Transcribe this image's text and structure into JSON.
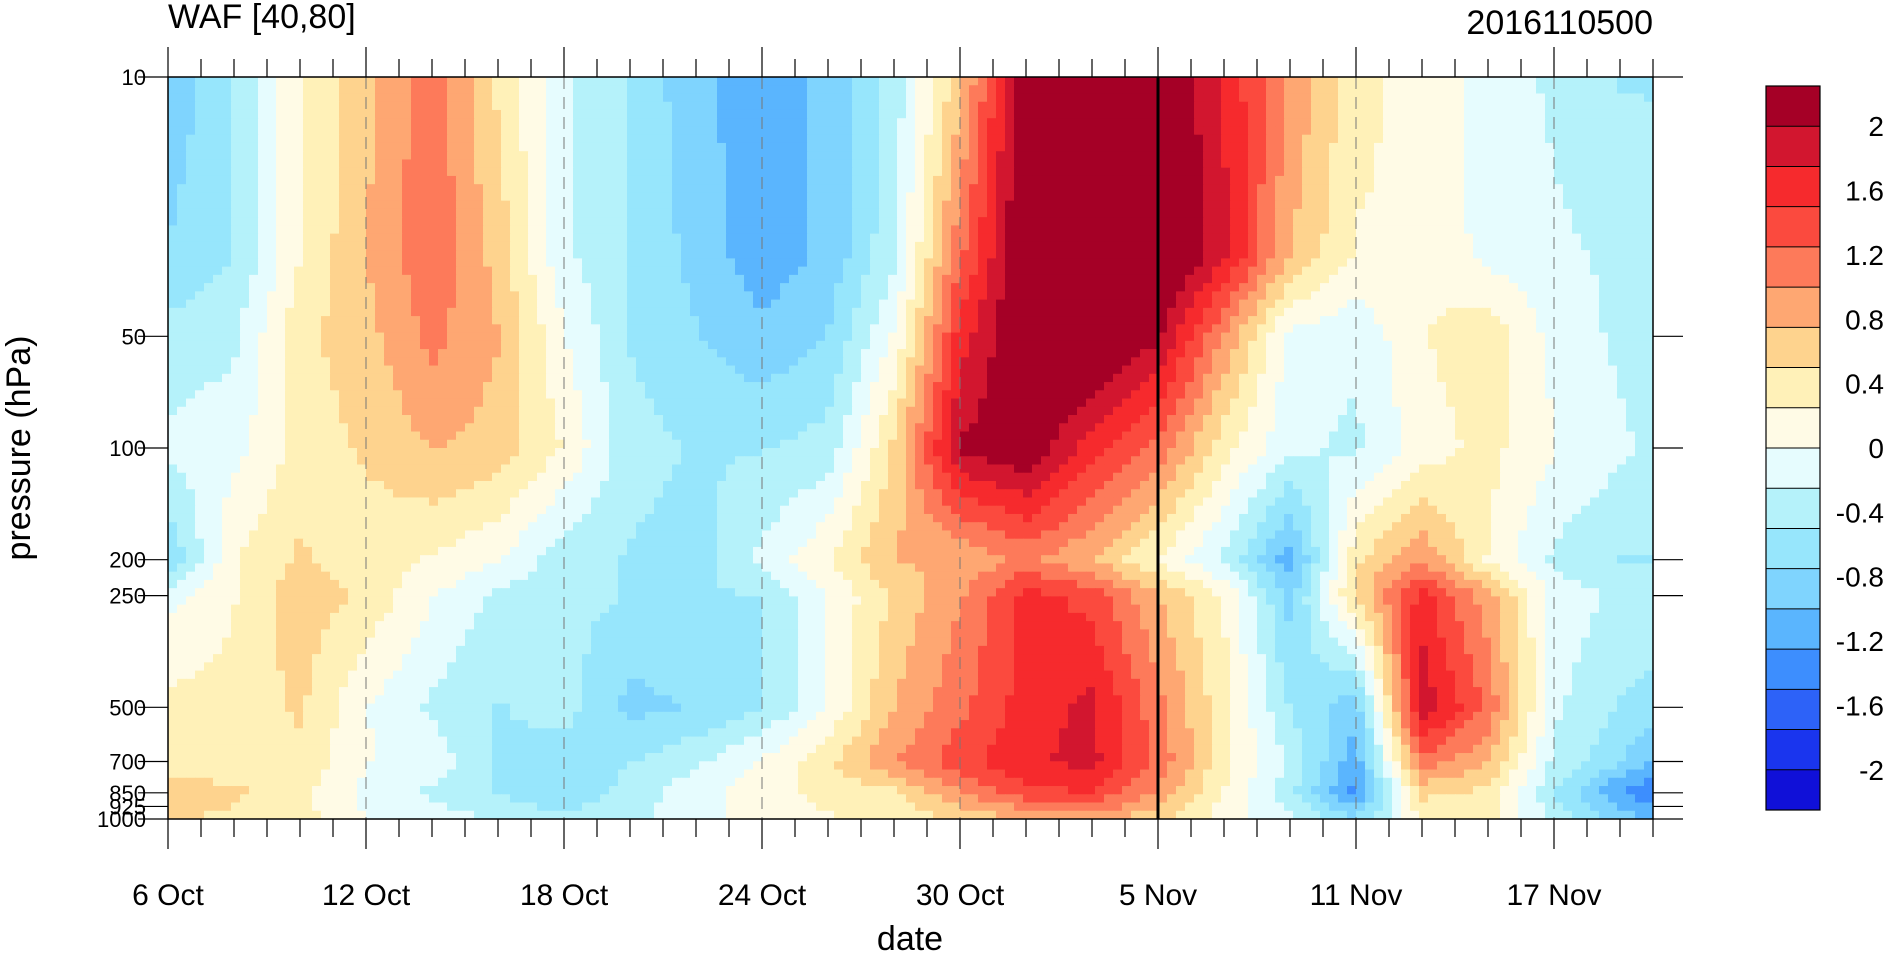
{
  "chart_data": {
    "type": "heatmap",
    "title": "WAF [40,80]",
    "subtitle": "2016110500",
    "xlabel": "date",
    "ylabel": "pressure (hPa)",
    "x_ticks": [
      "6 Oct",
      "12 Oct",
      "18 Oct",
      "24 Oct",
      "30 Oct",
      "5 Nov",
      "11 Nov",
      "17 Nov"
    ],
    "x_tick_days": [
      0,
      6,
      12,
      18,
      24,
      30,
      36,
      42
    ],
    "x_range_days": [
      0,
      45
    ],
    "y_ticks": [
      10,
      50,
      100,
      200,
      250,
      500,
      700,
      850,
      925,
      1000
    ],
    "y_range": [
      1000,
      10
    ],
    "y_scale": "log",
    "analysis_marker_day": 30,
    "colorbar_labels": [
      "2",
      "1.6",
      "1.2",
      "0.8",
      "0.4",
      "0",
      "-0.4",
      "-0.8",
      "-1.2",
      "-1.6",
      "-2"
    ],
    "colorbar_colors": [
      "#a50026",
      "#d2162f",
      "#f62a2d",
      "#fb4a3e",
      "#fd7a5a",
      "#fea772",
      "#fed38e",
      "#fff1b8",
      "#fffbe6",
      "#e6fcfe",
      "#b5f2fa",
      "#97e6fc",
      "#7fd4fe",
      "#5ab5fe",
      "#3d8efe",
      "#2d62f8",
      "#1a35ee",
      "#1010d8"
    ],
    "hovmoller": {
      "days": [
        0,
        2,
        4,
        6,
        8,
        10,
        12,
        14,
        16,
        18,
        20,
        22,
        24,
        26,
        28,
        30,
        32,
        34,
        36,
        38,
        40,
        42,
        44,
        45
      ],
      "levels": [
        10,
        30,
        50,
        100,
        200,
        250,
        500,
        700,
        850,
        1000
      ],
      "values": [
        [
          -1.0,
          -0.6,
          0.1,
          0.5,
          1.0,
          0.3,
          -0.3,
          -0.6,
          -1.0,
          -1.2,
          -1.0,
          -0.5,
          0.5,
          2.0,
          2.1,
          2.1,
          1.5,
          0.8,
          0.2,
          0.0,
          -0.2,
          -0.4,
          -0.6,
          -0.6
        ],
        [
          -0.8,
          -0.6,
          0.1,
          0.6,
          1.0,
          0.5,
          -0.3,
          -0.6,
          -0.9,
          -1.2,
          -1.0,
          -0.4,
          1.0,
          2.1,
          2.2,
          2.2,
          1.6,
          0.6,
          0.1,
          0.1,
          -0.2,
          -0.3,
          -0.4,
          -0.5
        ],
        [
          -0.5,
          -0.4,
          0.3,
          0.5,
          0.9,
          0.6,
          -0.1,
          -0.6,
          -0.8,
          -1.0,
          -0.8,
          -0.1,
          1.4,
          2.1,
          2.2,
          1.8,
          0.8,
          -0.2,
          -0.3,
          0.1,
          0.3,
          -0.2,
          -0.4,
          -0.5
        ],
        [
          -0.3,
          -0.2,
          0.2,
          0.4,
          0.6,
          0.5,
          0.1,
          -0.5,
          -0.6,
          -0.6,
          -0.5,
          0.4,
          1.8,
          2.0,
          1.4,
          1.0,
          0.2,
          -0.3,
          -0.4,
          0.0,
          0.2,
          -0.1,
          -0.3,
          -0.4
        ],
        [
          -0.8,
          0.1,
          0.4,
          0.2,
          0.1,
          -0.1,
          -0.5,
          -0.6,
          -0.7,
          -0.3,
          0.1,
          0.6,
          0.6,
          0.9,
          0.6,
          0.1,
          -0.4,
          -1.2,
          0.3,
          0.8,
          0.1,
          -0.4,
          -0.6,
          -0.6
        ],
        [
          -0.2,
          0.1,
          0.5,
          0.3,
          -0.1,
          -0.4,
          -0.5,
          -0.6,
          -0.6,
          -0.6,
          -0.1,
          0.4,
          0.8,
          1.4,
          1.2,
          0.6,
          0.1,
          -0.9,
          0.4,
          1.4,
          0.7,
          -0.2,
          -0.4,
          -0.4
        ],
        [
          0.2,
          0.2,
          0.4,
          -0.1,
          -0.4,
          -0.6,
          -0.5,
          -0.9,
          -0.8,
          -0.6,
          -0.1,
          0.6,
          1.0,
          1.4,
          1.6,
          0.9,
          0.2,
          -0.6,
          -1.0,
          1.7,
          1.0,
          -0.3,
          -0.6,
          -0.7
        ],
        [
          0.2,
          0.2,
          0.3,
          -0.1,
          -0.2,
          -0.6,
          -0.7,
          -0.6,
          -0.4,
          -0.1,
          0.3,
          0.8,
          1.2,
          1.5,
          1.6,
          1.0,
          0.2,
          -0.4,
          -1.2,
          1.0,
          0.6,
          -0.4,
          -0.8,
          -1.1
        ],
        [
          0.5,
          0.4,
          0.2,
          -0.2,
          -0.4,
          -0.6,
          -0.8,
          -0.5,
          -0.2,
          0.0,
          0.2,
          0.3,
          0.8,
          1.2,
          1.3,
          0.8,
          0.1,
          -0.5,
          -1.4,
          0.4,
          0.3,
          -0.6,
          -1.3,
          -1.5
        ],
        [
          0.4,
          0.3,
          0.2,
          -0.1,
          -0.2,
          -0.4,
          -0.5,
          -0.4,
          -0.2,
          0.0,
          0.1,
          0.2,
          0.4,
          0.6,
          0.7,
          0.4,
          0.0,
          -0.3,
          -0.8,
          0.2,
          0.2,
          -0.4,
          -0.9,
          -1.1
        ]
      ]
    }
  }
}
